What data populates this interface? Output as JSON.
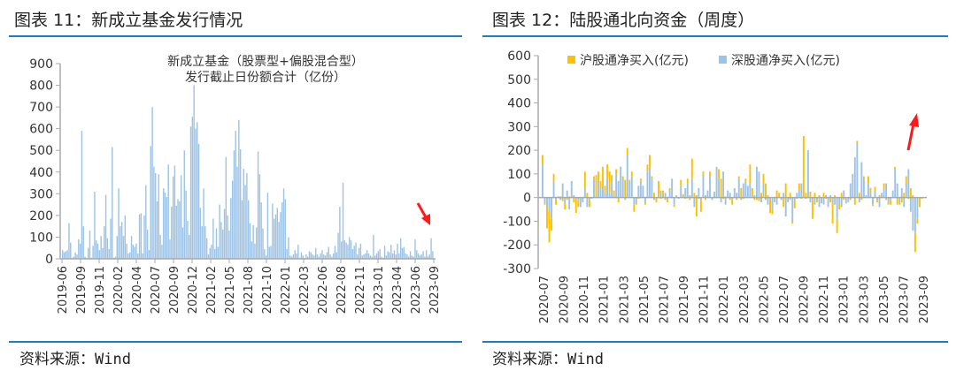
{
  "left": {
    "heading": "图表 11：新成立基金发行情况",
    "source_label": "资料来源：",
    "source_value": "Wind",
    "chart_data": {
      "type": "bar",
      "title": "新成立基金（股票型+偏股混合型）",
      "subtitle": "发行截止日份额合计（亿份）",
      "color": "#9dc3e6",
      "ylim": [
        0,
        900
      ],
      "yticks": [
        0,
        100,
        200,
        300,
        400,
        500,
        600,
        700,
        800,
        900
      ],
      "xtick_labels": [
        "2019-06",
        "2019-09",
        "2019-11",
        "2020-02",
        "2020-04",
        "2020-07",
        "2020-09",
        "2020-12",
        "2021-02",
        "2021-05",
        "2021-08",
        "2021-10",
        "2022-01",
        "2022-03",
        "2022-06",
        "2022-08",
        "2022-11",
        "2023-01",
        "2023-04",
        "2023-06",
        "2023-09"
      ],
      "values": [
        40,
        30,
        35,
        40,
        165,
        75,
        5,
        10,
        30,
        20,
        90,
        70,
        590,
        150,
        10,
        5,
        50,
        130,
        5,
        60,
        310,
        85,
        70,
        40,
        105,
        50,
        150,
        295,
        95,
        45,
        185,
        515,
        5,
        10,
        105,
        325,
        150,
        170,
        105,
        200,
        70,
        25,
        30,
        105,
        65,
        55,
        70,
        25,
        205,
        210,
        25,
        200,
        340,
        135,
        40,
        520,
        700,
        425,
        395,
        265,
        390,
        110,
        65,
        325,
        305,
        285,
        435,
        90,
        240,
        380,
        430,
        245,
        275,
        265,
        385,
        145,
        500,
        315,
        175,
        110,
        610,
        655,
        800,
        600,
        630,
        530,
        235,
        150,
        325,
        150,
        95,
        20,
        50,
        65,
        185,
        45,
        140,
        55,
        250,
        170,
        135,
        230,
        470,
        200,
        130,
        280,
        360,
        500,
        590,
        425,
        640,
        505,
        270,
        415,
        340,
        395,
        270,
        165,
        80,
        155,
        70,
        145,
        495,
        390,
        260,
        140,
        45,
        15,
        305,
        55,
        60,
        255,
        185,
        205,
        235,
        170,
        215,
        260,
        325,
        275,
        45,
        100,
        15,
        10,
        20,
        40,
        25,
        65,
        5,
        30,
        15,
        5,
        20,
        10,
        35,
        30,
        20,
        15,
        50,
        20,
        10,
        25,
        40,
        20,
        15,
        30,
        55,
        20,
        10,
        25,
        60,
        30,
        120,
        240,
        80,
        350,
        85,
        75,
        65,
        100,
        85,
        45,
        60,
        75,
        20,
        50,
        70,
        15,
        20,
        25,
        40,
        25,
        15,
        10,
        110,
        15,
        25,
        35,
        45,
        10,
        5,
        60,
        15,
        35,
        30,
        65,
        25,
        40,
        20,
        70,
        25,
        95,
        50,
        55,
        25,
        20,
        10,
        35,
        15,
        10,
        90,
        40,
        25,
        15,
        20,
        35,
        10,
        40,
        10,
        20,
        95,
        35
      ],
      "annotation": "red arrow pointing down at latest values"
    }
  },
  "right": {
    "heading": "图表 12：陆股通北向资金（周度）",
    "source_label": "资料来源：",
    "source_value": "Wind",
    "chart_data": {
      "type": "bar",
      "stacked": true,
      "ylim": [
        -300,
        600
      ],
      "yticks": [
        -300,
        -200,
        -100,
        0,
        100,
        200,
        300,
        400,
        500,
        600
      ],
      "xtick_labels": [
        "2020-07",
        "2020-09",
        "2020-11",
        "2021-01",
        "2021-03",
        "2021-05",
        "2021-07",
        "2021-09",
        "2021-11",
        "2022-01",
        "2022-03",
        "2022-05",
        "2022-07",
        "2022-09",
        "2022-11",
        "2023-01",
        "2023-03",
        "2023-05",
        "2023-07",
        "2023-09"
      ],
      "legend_position": "top",
      "series": [
        {
          "name": "沪股通净买入(亿元)",
          "color": "#ffc000",
          "values": [
            40,
            -10,
            -90,
            -130,
            -50,
            30,
            -20,
            0,
            5,
            -15,
            -30,
            -10,
            5,
            0,
            -20,
            -60,
            -30,
            0,
            0,
            70,
            20,
            -30,
            0,
            10,
            85,
            40,
            30,
            80,
            30,
            60,
            90,
            25,
            20,
            20,
            -20,
            0,
            10,
            75,
            30,
            5,
            20,
            -30,
            -10,
            -5,
            10,
            0,
            -10,
            30,
            50,
            10,
            20,
            -20,
            60,
            -5,
            20,
            -10,
            -10,
            10,
            0,
            -10,
            0,
            0,
            25,
            5,
            -5,
            20,
            -10,
            85,
            20,
            -80,
            -5,
            -50,
            10,
            -10,
            0,
            20,
            0,
            5,
            0,
            40,
            80,
            -5,
            5,
            0,
            -10,
            -20,
            0,
            -10,
            10,
            40,
            -5,
            10,
            0,
            80,
            30,
            -10,
            -10,
            -15,
            20,
            40,
            60,
            10,
            -60,
            -20,
            0,
            30,
            10,
            0,
            -40,
            60,
            0,
            20,
            -10,
            -30,
            -5,
            30,
            -5,
            250,
            20,
            0,
            25,
            -80,
            20,
            -10,
            10,
            -5,
            20,
            -5,
            0,
            -20,
            -90,
            10,
            -60,
            -30,
            20,
            -10,
            -5,
            0,
            -10,
            0,
            -30,
            10,
            20,
            -10,
            10,
            0,
            30,
            20,
            -5,
            15,
            -10,
            10,
            0,
            20,
            -10,
            -10,
            -20,
            0,
            10,
            -30,
            -10,
            -20,
            20,
            30,
            -5,
            40,
            10,
            -80,
            -20,
            -40,
            -5
          ]
        },
        {
          "name": "深股通净买入(亿元)",
          "color": "#9dc3e6",
          "values": [
            140,
            -20,
            -40,
            -60,
            -90,
            70,
            -10,
            5,
            -10,
            60,
            -20,
            30,
            -50,
            70,
            10,
            -5,
            -10,
            -40,
            -20,
            40,
            -40,
            -10,
            -5,
            80,
            10,
            70,
            40,
            50,
            20,
            80,
            20,
            70,
            10,
            100,
            70,
            130,
            80,
            -10,
            180,
            70,
            90,
            -30,
            -20,
            50,
            70,
            50,
            -20,
            110,
            130,
            80,
            -10,
            0,
            10,
            30,
            10,
            20,
            -10,
            30,
            80,
            -30,
            10,
            -5,
            50,
            10,
            40,
            60,
            10,
            80,
            -40,
            10,
            40,
            -10,
            100,
            10,
            30,
            90,
            -10,
            20,
            130,
            80,
            -20,
            110,
            -30,
            30,
            20,
            -10,
            40,
            20,
            80,
            -10,
            60,
            70,
            50,
            60,
            10,
            10,
            130,
            110,
            -20,
            60,
            -10,
            -30,
            -5,
            -50,
            -20,
            -30,
            10,
            -10,
            20,
            -80,
            -20,
            -10,
            -100,
            -15,
            20,
            30,
            60,
            10,
            -5,
            200,
            -20,
            -10,
            -30,
            -10,
            -40,
            -20,
            -30,
            10,
            -40,
            10,
            -20,
            -30,
            -90,
            -20,
            -40,
            30,
            -20,
            -20,
            60,
            100,
            170,
            230,
            -20,
            150,
            80,
            10,
            60,
            20,
            -30,
            30,
            -10,
            -40,
            20,
            40,
            60,
            -20,
            -10,
            30,
            120,
            60,
            -20,
            40,
            -40,
            60,
            120,
            -60,
            -140,
            -150,
            -90
          ]
        }
      ],
      "annotation": "red arrow pointing up near recent values"
    }
  }
}
